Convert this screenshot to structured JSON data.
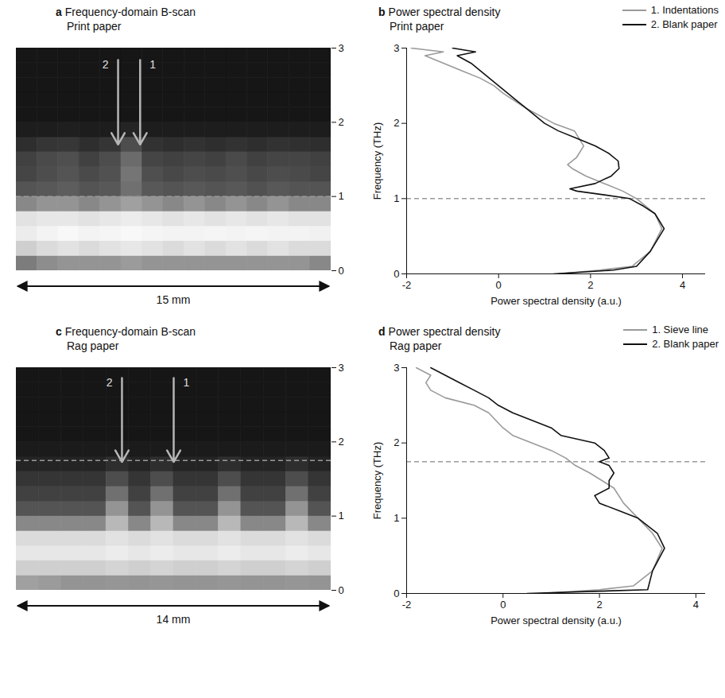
{
  "chart_data": [
    {
      "type": "heatmap",
      "panel": "a",
      "title": "Frequency-domain B-scan",
      "subtitle": "Print paper",
      "xlim": [
        0,
        15
      ],
      "ylim": [
        0,
        3
      ],
      "yticks": [
        0,
        1,
        2,
        3
      ],
      "tick_labels": "y",
      "zlim": [
        0,
        1
      ],
      "scale_label": "15 mm",
      "reference_line": 1,
      "x_bins": [
        0,
        1,
        2,
        3,
        4,
        5,
        6,
        7,
        8,
        9,
        10,
        11,
        12,
        13,
        14,
        15
      ],
      "y_bins": [
        0,
        0.2,
        0.4,
        0.6,
        0.8,
        1.0,
        1.2,
        1.4,
        1.6,
        1.8,
        2.0,
        2.2,
        2.4,
        2.6,
        2.8,
        3.0
      ],
      "z": [
        [
          0.45,
          0.52,
          0.55,
          0.55,
          0.55,
          0.58,
          0.55,
          0.55,
          0.55,
          0.55,
          0.55,
          0.55,
          0.55,
          0.55,
          0.5
        ],
        [
          0.8,
          0.85,
          0.88,
          0.85,
          0.88,
          0.9,
          0.88,
          0.85,
          0.88,
          0.85,
          0.88,
          0.85,
          0.88,
          0.85,
          0.85
        ],
        [
          0.92,
          0.95,
          0.97,
          0.95,
          0.96,
          0.97,
          0.96,
          0.95,
          0.95,
          0.96,
          0.95,
          0.96,
          0.95,
          0.95,
          0.94
        ],
        [
          0.88,
          0.9,
          0.9,
          0.88,
          0.9,
          0.92,
          0.9,
          0.88,
          0.9,
          0.88,
          0.9,
          0.88,
          0.9,
          0.88,
          0.88
        ],
        [
          0.5,
          0.55,
          0.55,
          0.5,
          0.55,
          0.6,
          0.55,
          0.5,
          0.55,
          0.5,
          0.55,
          0.5,
          0.55,
          0.5,
          0.5
        ],
        [
          0.28,
          0.3,
          0.32,
          0.28,
          0.3,
          0.4,
          0.3,
          0.28,
          0.3,
          0.28,
          0.3,
          0.27,
          0.3,
          0.28,
          0.28
        ],
        [
          0.22,
          0.25,
          0.28,
          0.24,
          0.27,
          0.42,
          0.26,
          0.23,
          0.25,
          0.24,
          0.26,
          0.23,
          0.25,
          0.24,
          0.22
        ],
        [
          0.2,
          0.24,
          0.26,
          0.2,
          0.25,
          0.38,
          0.22,
          0.2,
          0.22,
          0.2,
          0.24,
          0.2,
          0.22,
          0.22,
          0.2
        ],
        [
          0.12,
          0.15,
          0.16,
          0.12,
          0.15,
          0.25,
          0.14,
          0.12,
          0.14,
          0.12,
          0.14,
          0.12,
          0.14,
          0.13,
          0.12
        ],
        [
          0.05,
          0.05,
          0.06,
          0.05,
          0.05,
          0.08,
          0.05,
          0.05,
          0.05,
          0.05,
          0.05,
          0.05,
          0.05,
          0.05,
          0.05
        ],
        [
          0.02,
          0.02,
          0.02,
          0.02,
          0.02,
          0.02,
          0.02,
          0.02,
          0.02,
          0.02,
          0.02,
          0.02,
          0.02,
          0.02,
          0.02
        ],
        [
          0.02,
          0.02,
          0.02,
          0.02,
          0.02,
          0.02,
          0.02,
          0.02,
          0.02,
          0.02,
          0.02,
          0.02,
          0.02,
          0.02,
          0.02
        ],
        [
          0.02,
          0.02,
          0.02,
          0.02,
          0.02,
          0.02,
          0.02,
          0.02,
          0.02,
          0.02,
          0.02,
          0.02,
          0.02,
          0.02,
          0.02
        ],
        [
          0.02,
          0.02,
          0.02,
          0.02,
          0.02,
          0.02,
          0.02,
          0.02,
          0.02,
          0.02,
          0.02,
          0.02,
          0.02,
          0.02,
          0.02
        ],
        [
          0.02,
          0.02,
          0.02,
          0.02,
          0.02,
          0.02,
          0.02,
          0.02,
          0.02,
          0.02,
          0.02,
          0.02,
          0.02,
          0.02,
          0.02
        ]
      ],
      "annotations": [
        {
          "text": "2",
          "x": 4.85,
          "y_from": 2.84,
          "y_to": 1.7
        },
        {
          "text": "1",
          "x": 5.9,
          "y_from": 2.84,
          "y_to": 1.7
        }
      ]
    },
    {
      "type": "line",
      "panel": "b",
      "title": "Power spectral density",
      "subtitle": "Print paper",
      "x_label": "Power spectral density (a.u.)",
      "y_label": "Frequency (THz)",
      "xlim": [
        -2,
        4.5
      ],
      "xticks": [
        -2,
        0,
        2,
        4
      ],
      "ylim": [
        0,
        3
      ],
      "yticks": [
        0,
        1,
        2,
        3
      ],
      "legend": "top-right",
      "reference_line": 1,
      "series": [
        {
          "name": "1. Indentations",
          "color": "#9a9a9a",
          "frequency": [
            0.0,
            0.05,
            0.1,
            0.3,
            0.6,
            0.8,
            1.0,
            1.1,
            1.2,
            1.3,
            1.4,
            1.45,
            1.55,
            1.7,
            1.9,
            2.0,
            2.2,
            2.4,
            2.5,
            2.6,
            2.7,
            2.8,
            2.9,
            2.95,
            3.0
          ],
          "psd": [
            1.3,
            2.2,
            2.9,
            3.3,
            3.55,
            3.4,
            3.0,
            2.7,
            2.3,
            1.9,
            1.6,
            1.5,
            1.7,
            1.85,
            1.65,
            1.2,
            0.6,
            0.1,
            -0.1,
            -0.4,
            -0.8,
            -1.2,
            -1.6,
            -1.2,
            -1.9
          ]
        },
        {
          "name": "2. Blank paper",
          "color": "#111111",
          "frequency": [
            0.0,
            0.05,
            0.1,
            0.3,
            0.6,
            0.8,
            0.9,
            1.0,
            1.05,
            1.1,
            1.13,
            1.2,
            1.3,
            1.4,
            1.5,
            1.6,
            1.7,
            1.8,
            1.9,
            2.0,
            2.1,
            2.2,
            2.3,
            2.4,
            2.5,
            2.6,
            2.7,
            2.8,
            2.9,
            2.95,
            3.0
          ],
          "psd": [
            1.2,
            2.5,
            3.0,
            3.3,
            3.6,
            3.4,
            3.15,
            2.85,
            2.3,
            1.7,
            1.55,
            2.1,
            2.45,
            2.62,
            2.6,
            2.4,
            2.1,
            1.7,
            1.3,
            1.0,
            0.8,
            0.6,
            0.4,
            0.2,
            0.0,
            -0.2,
            -0.4,
            -0.6,
            -0.9,
            -0.5,
            -1.0
          ]
        }
      ]
    },
    {
      "type": "heatmap",
      "panel": "c",
      "title": "Frequency-domain B-scan",
      "subtitle": "Rag paper",
      "xlim": [
        0,
        14
      ],
      "ylim": [
        0,
        3
      ],
      "yticks": [
        0,
        1,
        2,
        3
      ],
      "tick_labels": "y",
      "zlim": [
        0,
        1
      ],
      "scale_label": "14 mm",
      "reference_line": 1.75,
      "x_bins": [
        0,
        1,
        2,
        3,
        4,
        5,
        6,
        7,
        8,
        9,
        10,
        11,
        12,
        13,
        14
      ],
      "y_bins": [
        0,
        0.2,
        0.4,
        0.6,
        0.8,
        1.0,
        1.2,
        1.4,
        1.6,
        1.8,
        2.0,
        2.2,
        2.4,
        2.6,
        2.8,
        3.0
      ],
      "z": [
        [
          0.6,
          0.58,
          0.55,
          0.55,
          0.56,
          0.55,
          0.56,
          0.55,
          0.55,
          0.56,
          0.55,
          0.55,
          0.56,
          0.55
        ],
        [
          0.8,
          0.8,
          0.8,
          0.8,
          0.82,
          0.8,
          0.82,
          0.8,
          0.8,
          0.82,
          0.8,
          0.8,
          0.82,
          0.8
        ],
        [
          0.9,
          0.9,
          0.9,
          0.9,
          0.92,
          0.9,
          0.92,
          0.9,
          0.9,
          0.92,
          0.9,
          0.9,
          0.92,
          0.9
        ],
        [
          0.85,
          0.85,
          0.85,
          0.85,
          0.88,
          0.85,
          0.88,
          0.85,
          0.85,
          0.88,
          0.85,
          0.85,
          0.88,
          0.85
        ],
        [
          0.5,
          0.5,
          0.5,
          0.5,
          0.7,
          0.5,
          0.7,
          0.5,
          0.5,
          0.7,
          0.5,
          0.5,
          0.7,
          0.5
        ],
        [
          0.28,
          0.28,
          0.28,
          0.28,
          0.55,
          0.28,
          0.55,
          0.28,
          0.28,
          0.55,
          0.28,
          0.28,
          0.55,
          0.28
        ],
        [
          0.2,
          0.2,
          0.2,
          0.2,
          0.4,
          0.2,
          0.4,
          0.2,
          0.2,
          0.4,
          0.2,
          0.2,
          0.4,
          0.2
        ],
        [
          0.15,
          0.15,
          0.15,
          0.15,
          0.25,
          0.15,
          0.25,
          0.15,
          0.15,
          0.25,
          0.15,
          0.15,
          0.25,
          0.15
        ],
        [
          0.08,
          0.08,
          0.08,
          0.08,
          0.12,
          0.08,
          0.12,
          0.08,
          0.08,
          0.12,
          0.08,
          0.08,
          0.12,
          0.08
        ],
        [
          0.04,
          0.04,
          0.04,
          0.04,
          0.04,
          0.04,
          0.04,
          0.04,
          0.04,
          0.04,
          0.04,
          0.04,
          0.04,
          0.04
        ],
        [
          0.02,
          0.02,
          0.02,
          0.02,
          0.02,
          0.02,
          0.02,
          0.02,
          0.02,
          0.02,
          0.02,
          0.02,
          0.02,
          0.02
        ],
        [
          0.02,
          0.02,
          0.02,
          0.02,
          0.02,
          0.02,
          0.02,
          0.02,
          0.02,
          0.02,
          0.02,
          0.02,
          0.02,
          0.02
        ],
        [
          0.02,
          0.02,
          0.02,
          0.02,
          0.02,
          0.02,
          0.02,
          0.02,
          0.02,
          0.02,
          0.02,
          0.02,
          0.02,
          0.02
        ],
        [
          0.02,
          0.02,
          0.02,
          0.02,
          0.02,
          0.02,
          0.02,
          0.02,
          0.02,
          0.02,
          0.02,
          0.02,
          0.02,
          0.02
        ],
        [
          0.02,
          0.02,
          0.02,
          0.02,
          0.02,
          0.02,
          0.02,
          0.02,
          0.02,
          0.02,
          0.02,
          0.02,
          0.02,
          0.02
        ]
      ],
      "annotations": [
        {
          "text": "2",
          "x": 4.7,
          "y_from": 2.86,
          "y_to": 1.73
        },
        {
          "text": "1",
          "x": 7.0,
          "y_from": 2.86,
          "y_to": 1.73
        }
      ]
    },
    {
      "type": "line",
      "panel": "d",
      "title": "Power spectral density",
      "subtitle": "Rag paper",
      "x_label": "Power spectral density (a.u.)",
      "y_label": "Frequency (THz)",
      "xlim": [
        -2,
        4.2
      ],
      "xticks": [
        -2,
        0,
        2,
        4
      ],
      "ylim": [
        0,
        3
      ],
      "yticks": [
        0,
        1,
        2,
        3
      ],
      "legend": "top-right",
      "reference_line": 1.75,
      "series": [
        {
          "name": "1. Sieve line",
          "color": "#9a9a9a",
          "frequency": [
            0.0,
            0.05,
            0.1,
            0.3,
            0.6,
            0.8,
            1.0,
            1.2,
            1.4,
            1.6,
            1.7,
            1.8,
            1.9,
            2.0,
            2.1,
            2.2,
            2.4,
            2.5,
            2.6,
            2.7,
            2.8,
            2.9,
            3.0
          ],
          "psd": [
            0.8,
            2.0,
            2.7,
            3.1,
            3.3,
            3.1,
            2.8,
            2.5,
            2.3,
            1.8,
            1.5,
            1.3,
            1.0,
            0.6,
            0.2,
            0.0,
            -0.3,
            -0.6,
            -1.2,
            -1.5,
            -1.6,
            -1.5,
            -1.8
          ]
        },
        {
          "name": "2. Blank paper",
          "color": "#111111",
          "frequency": [
            0.0,
            0.03,
            0.05,
            0.3,
            0.6,
            0.8,
            1.0,
            1.1,
            1.2,
            1.3,
            1.4,
            1.5,
            1.6,
            1.7,
            1.75,
            1.8,
            1.9,
            2.0,
            2.1,
            2.2,
            2.3,
            2.4,
            2.5,
            2.6,
            2.7,
            2.8,
            2.9,
            3.0
          ],
          "psd": [
            0.5,
            2.0,
            3.0,
            3.1,
            3.35,
            3.2,
            2.8,
            2.4,
            2.0,
            1.9,
            2.2,
            2.2,
            2.3,
            2.2,
            2.0,
            2.2,
            2.1,
            1.9,
            1.2,
            1.0,
            0.6,
            0.2,
            -0.1,
            -0.3,
            -0.6,
            -0.9,
            -1.2,
            -1.5
          ]
        }
      ]
    }
  ]
}
